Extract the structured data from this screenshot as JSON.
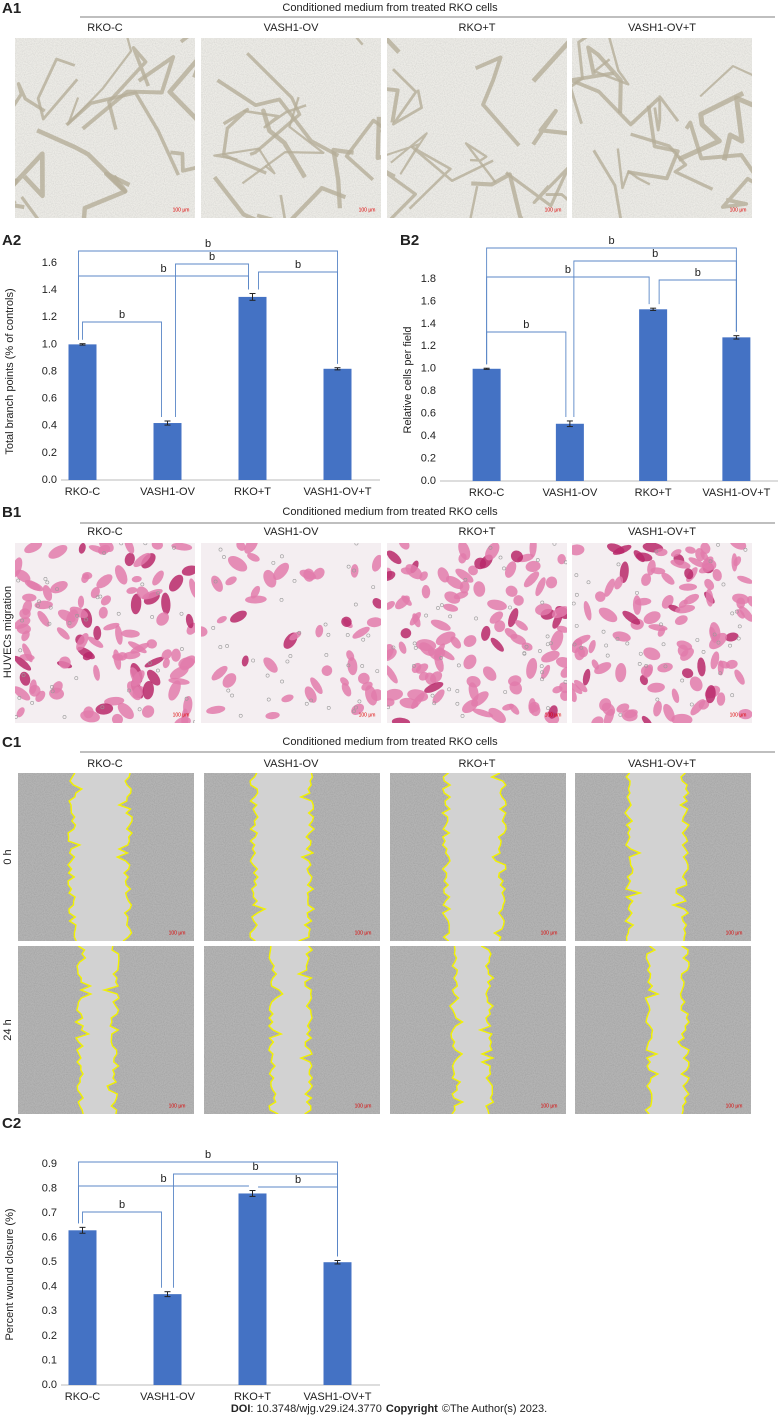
{
  "panels": {
    "A1": {
      "label": "A1",
      "header": "Conditioned medium from treated RKO cells",
      "columns": [
        "RKO-C",
        "VASH1-OV",
        "RKO+T",
        "VASH1-OV+T"
      ],
      "scale_bar": "100 μm"
    },
    "B1": {
      "label": "B1",
      "header": "Conditioned medium from treated RKO cells",
      "columns": [
        "RKO-C",
        "VASH1-OV",
        "RKO+T",
        "VASH1-OV+T"
      ],
      "row_label": "HUVECs migration",
      "scale_bar": "100 μm"
    },
    "C1": {
      "label": "C1",
      "header": "Conditioned medium from treated RKO cells",
      "columns": [
        "RKO-C",
        "VASH1-OV",
        "RKO+T",
        "VASH1-OV+T"
      ],
      "row_labels": [
        "0 h",
        "24 h"
      ],
      "scale_bar": "100 μm"
    }
  },
  "chart_data": [
    {
      "type": "bar",
      "panel_label": "A2",
      "ylabel": "Total branch points (% of controls)",
      "categories": [
        "RKO-C",
        "VASH1-OV",
        "RKO+T",
        "VASH1-OV+T"
      ],
      "values": [
        1.0,
        0.42,
        1.35,
        0.82
      ],
      "errors": [
        0.005,
        0.015,
        0.025,
        0.008
      ],
      "color": "#4472c4",
      "ylim": [
        0,
        1.6
      ],
      "yticks": [
        {
          "value": 0,
          "label": "0.0"
        },
        0.2,
        0.4,
        0.6,
        0.8,
        {
          "value": 1,
          "label": "1.0"
        },
        1.2,
        1.4,
        1.6
      ],
      "annotations": [
        "b",
        "b",
        "b",
        "b",
        "b"
      ]
    },
    {
      "type": "bar",
      "panel_label": "B2",
      "ylabel": "Relative cells per field",
      "categories": [
        "RKO-C",
        "VASH1-OV",
        "RKO+T",
        "VASH1-OV+T"
      ],
      "values": [
        1.0,
        0.51,
        1.53,
        1.28
      ],
      "errors": [
        0.005,
        0.025,
        0.01,
        0.015
      ],
      "color": "#4472c4",
      "ylim": [
        0,
        1.8
      ],
      "yticks": [
        {
          "value": 0,
          "label": "0.0"
        },
        0.2,
        0.4,
        0.6,
        0.8,
        {
          "value": 1,
          "label": "1.0"
        },
        1.2,
        1.4,
        1.6,
        1.8
      ],
      "annotations": [
        "b",
        "b",
        "b",
        "b",
        "b"
      ]
    },
    {
      "type": "bar",
      "panel_label": "C2",
      "ylabel": "Percent wound closure (%)",
      "categories": [
        "RKO-C",
        "VASH1-OV",
        "RKO+T",
        "VASH1-OV+T"
      ],
      "values": [
        0.63,
        0.37,
        0.78,
        0.5
      ],
      "errors": [
        0.012,
        0.01,
        0.012,
        0.007
      ],
      "color": "#4472c4",
      "ylim": [
        0,
        0.9
      ],
      "yticks": [
        {
          "value": 0,
          "label": "0.0"
        },
        0.1,
        0.2,
        0.3,
        0.4,
        0.5,
        0.6,
        0.7,
        0.8,
        0.9
      ],
      "annotations": [
        "b",
        "b",
        "b",
        "b",
        "b"
      ]
    }
  ],
  "footer": {
    "doi_label": "DOI",
    "doi": ": 10.3748/wjg.v29.i24.3770",
    "copyright_label": "Copyright",
    "copyright": "©The Author(s) 2023."
  }
}
